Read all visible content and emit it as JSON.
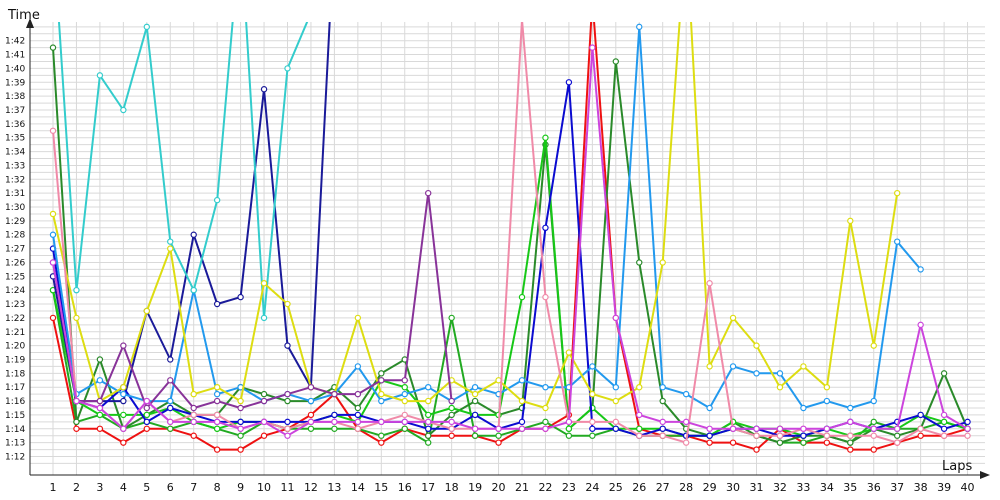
{
  "chart_data": {
    "type": "line",
    "title": "",
    "xlabel": "Laps",
    "ylabel": "Time",
    "x": [
      1,
      2,
      3,
      4,
      5,
      6,
      7,
      8,
      9,
      10,
      11,
      12,
      13,
      14,
      15,
      16,
      17,
      18,
      19,
      20,
      21,
      22,
      23,
      24,
      25,
      26,
      27,
      28,
      29,
      30,
      31,
      32,
      33,
      34,
      35,
      36,
      37,
      38,
      39,
      40
    ],
    "y_ticks": [
      "1:12",
      "1:13",
      "1:14",
      "1:15",
      "1:16",
      "1:17",
      "1:18",
      "1:19",
      "1:20",
      "1:21",
      "1:22",
      "1:23",
      "1:24",
      "1:25",
      "1:26",
      "1:27",
      "1:28",
      "1:29",
      "1:30",
      "1:31",
      "1:32",
      "1:33",
      "1:34",
      "1:35",
      "1:36",
      "1:37",
      "1:38",
      "1:39",
      "1:40",
      "1:41",
      "1:42"
    ],
    "ylim_seconds": [
      71,
      104
    ],
    "grid": true,
    "legend": "none",
    "series": [
      {
        "color": "#ee1111",
        "values": [
          82,
          74,
          74,
          73,
          74,
          74,
          73.5,
          72.5,
          72.5,
          73.5,
          74,
          75,
          76.5,
          74,
          73,
          74,
          73.5,
          73.5,
          73.5,
          73,
          74,
          74,
          75,
          105,
          82,
          74,
          73.5,
          73.5,
          73,
          73,
          72.5,
          74,
          73,
          73,
          72.5,
          72.5,
          73,
          73.5,
          73.5,
          74
        ]
      },
      {
        "color": "#22aa22",
        "values": [
          84,
          74.5,
          75,
          74,
          74.5,
          74,
          74.5,
          74,
          73.5,
          74.5,
          74,
          74,
          74,
          74,
          73.5,
          74,
          73,
          82,
          73.5,
          73.5,
          74,
          74.5,
          73.5,
          73.5,
          74,
          73.5,
          73.5,
          73.5,
          73.5,
          74,
          73.5,
          73,
          73,
          73.5,
          73,
          74.5,
          74,
          74,
          74.5,
          74
        ]
      },
      {
        "color": "#2a8a2a",
        "values": [
          101.5,
          74.5,
          79,
          74,
          75,
          76,
          75,
          75,
          77,
          76.5,
          76,
          76,
          77,
          75.5,
          78,
          79,
          73.5,
          75,
          76,
          75,
          75.5,
          94.5,
          74,
          75.5,
          100.5,
          86,
          76,
          74,
          73.5,
          74.5,
          73.5,
          73,
          73.5,
          73.5,
          73,
          74,
          73.5,
          74,
          78,
          74
        ]
      },
      {
        "color": "#17c817",
        "values": [
          84,
          76,
          75,
          75,
          75,
          75.5,
          74.5,
          74,
          74.5,
          74.5,
          74,
          74.5,
          75,
          74.5,
          77.5,
          77,
          75,
          75.5,
          75,
          75,
          83.5,
          95,
          74,
          75.5,
          74,
          74,
          74,
          73.5,
          73.5,
          74.5,
          74,
          74,
          73.5,
          74,
          73.5,
          74,
          74,
          75,
          74.5,
          74
        ]
      },
      {
        "color": "#1a1a99",
        "values": [
          85,
          76,
          76,
          76,
          82.5,
          79,
          88,
          83,
          83.5,
          98.5,
          80,
          77,
          110,
          110,
          110,
          110,
          110,
          110,
          110,
          110,
          110,
          110,
          110,
          110,
          110,
          110,
          110,
          110,
          110,
          110,
          110,
          110,
          110,
          110,
          110,
          110,
          110,
          110,
          110,
          110
        ],
        "segment": [
          1,
          13
        ]
      },
      {
        "color": "#0b0bd0",
        "values": [
          87,
          76,
          75.5,
          77,
          74.5,
          75.5,
          75,
          74.5,
          74.5,
          74.5,
          74.5,
          74.5,
          75,
          75,
          74.5,
          74.5,
          74,
          74,
          75,
          74,
          74.5,
          88.5,
          99,
          74,
          74,
          73.5,
          74,
          73.5,
          73.5,
          74,
          74,
          73.5,
          73.5,
          74,
          74.5,
          74,
          74.5,
          75,
          74,
          74.5
        ]
      },
      {
        "color": "#2299ee",
        "values": [
          88,
          76.5,
          77.5,
          76.5,
          76,
          76,
          84,
          76.5,
          77,
          76,
          76.5,
          76,
          76.5,
          78.5,
          76,
          76.5,
          77,
          76,
          77,
          76.5,
          77.5,
          77,
          77,
          78.5,
          77,
          103,
          77,
          76.5,
          75.5,
          78.5,
          78,
          78,
          75.5,
          76,
          75.5,
          76,
          87.5,
          85.5,
          null,
          null
        ]
      },
      {
        "color": "#33cccc",
        "values": [
          110,
          84,
          99.5,
          97,
          103,
          87.5,
          84,
          90.5,
          110,
          82,
          100,
          104,
          null,
          110,
          null,
          null,
          null,
          null,
          null,
          null,
          null,
          null,
          null,
          null,
          null,
          null,
          null,
          null,
          null,
          null,
          null,
          null,
          null,
          null,
          null,
          null,
          null,
          null,
          null,
          null
        ]
      },
      {
        "color": "#dddd11",
        "values": [
          89.5,
          82,
          76,
          77,
          82.5,
          87,
          76.5,
          77,
          76,
          84.5,
          83,
          77,
          76.5,
          82,
          76.5,
          76,
          76,
          77.5,
          76.5,
          77.5,
          76,
          75.5,
          79.5,
          76.5,
          76,
          77,
          86,
          110,
          78.5,
          82,
          80,
          77,
          78.5,
          77,
          89,
          80,
          91,
          null,
          null,
          null
        ]
      },
      {
        "color": "#883399",
        "values": [
          86,
          76,
          76,
          80,
          75.5,
          77.5,
          75.5,
          76,
          75.5,
          76,
          76.5,
          77,
          76.5,
          76.5,
          77.5,
          77.5,
          91,
          76,
          null,
          null,
          null,
          null,
          null,
          null,
          null,
          null,
          null,
          null,
          null,
          null,
          null,
          null,
          null,
          null,
          null,
          null,
          null,
          null,
          null,
          null
        ]
      },
      {
        "color": "#f08aa8",
        "values": [
          95.5,
          76,
          75.5,
          74,
          76,
          74.5,
          75,
          75,
          74,
          74.5,
          74,
          74.5,
          74.5,
          74,
          74.5,
          75,
          74.5,
          74,
          74,
          74,
          103.5,
          83.5,
          74.5,
          74.5,
          74.5,
          73.5,
          73.5,
          73,
          84.5,
          74,
          73.5,
          73.5,
          74,
          73.5,
          73.5,
          73.5,
          73,
          74,
          73.5,
          73.5
        ]
      },
      {
        "color": "#cc44dd",
        "values": [
          86,
          76,
          75.5,
          74,
          76,
          74.5,
          74.5,
          74.5,
          74,
          74.5,
          73.5,
          74.5,
          74.5,
          74.5,
          74.5,
          74.5,
          74.5,
          74.5,
          74,
          74,
          74,
          74,
          74.5,
          101.5,
          82,
          75,
          74.5,
          74.5,
          74,
          74,
          74,
          74,
          74,
          74,
          74.5,
          74,
          74,
          81.5,
          75,
          74
        ]
      }
    ]
  }
}
